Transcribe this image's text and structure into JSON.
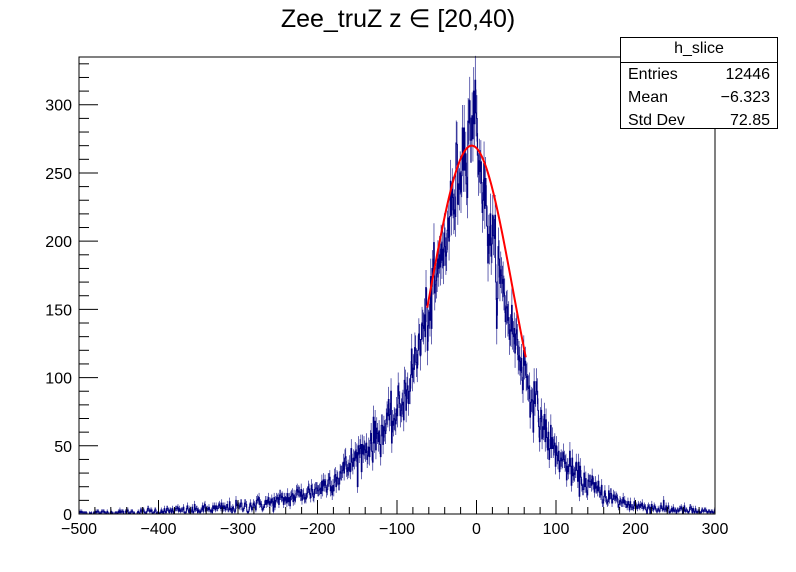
{
  "chart_data": {
    "type": "histogram",
    "title": "Zee_truZ z  ∈ [20,40)",
    "xlabel": "",
    "ylabel": "",
    "xlim": [
      -500,
      300
    ],
    "ylim": [
      0,
      335
    ],
    "x_ticks": [
      -500,
      -400,
      -300,
      -200,
      -100,
      0,
      100,
      200,
      300
    ],
    "x_tick_labels": [
      "−500",
      "−400",
      "−300",
      "−200",
      "−100",
      "0",
      "100",
      "200",
      "300"
    ],
    "y_ticks": [
      0,
      50,
      100,
      150,
      200,
      250,
      300
    ],
    "y_tick_labels": [
      "0",
      "50",
      "100",
      "150",
      "200",
      "250",
      "300"
    ],
    "grid": false,
    "histogram_color": "#000080",
    "fit_color": "#ff0000",
    "series": [
      {
        "kind": "histogram-envelope",
        "x": [
          -500,
          -450,
          -400,
          -350,
          -300,
          -250,
          -200,
          -175,
          -150,
          -125,
          -100,
          -90,
          -80,
          -70,
          -60,
          -50,
          -40,
          -30,
          -20,
          -15,
          -10,
          -5,
          0,
          5,
          10,
          20,
          30,
          40,
          50,
          60,
          70,
          80,
          90,
          100,
          125,
          150,
          175,
          200,
          250,
          300
        ],
        "y": [
          1,
          1,
          2,
          3,
          5,
          9,
          18,
          27,
          42,
          57,
          72,
          88,
          105,
          128,
          148,
          172,
          197,
          226,
          258,
          270,
          285,
          292,
          288,
          258,
          228,
          196,
          170,
          146,
          126,
          106,
          87,
          70,
          55,
          44,
          28,
          18,
          10,
          6,
          3,
          1
        ]
      },
      {
        "kind": "gaussian-fit",
        "amplitude": 270,
        "mean": -6,
        "sigma": 52,
        "range": [
          -62,
          62
        ]
      }
    ]
  },
  "stats": {
    "title": "h_slice",
    "rows": [
      {
        "label": "Entries",
        "value": "12446"
      },
      {
        "label": "Mean",
        "value": "−6.323"
      },
      {
        "label": "Std Dev",
        "value": "72.85"
      }
    ]
  }
}
